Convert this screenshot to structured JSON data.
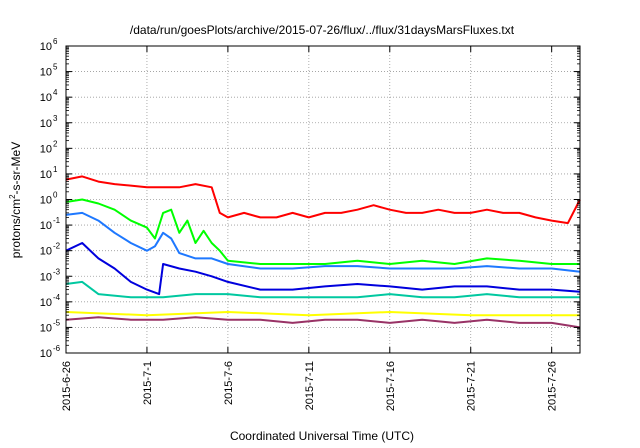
{
  "chart_data": {
    "type": "line",
    "title": "/data/run/goesPlots/archive/2015-07-26/flux/../flux/31daysMarsFluxes.txt",
    "xlabel": "Coordinated Universal Time (UTC)",
    "ylabel": "protons/cm2-s-sr-MeV",
    "ylabel_parts": [
      "protons/cm",
      "2",
      "-s-sr-MeV"
    ],
    "yscale": "log",
    "ylim_exp": [
      -6,
      6
    ],
    "y_ticks": [
      {
        "base": "10",
        "exp": "6"
      },
      {
        "base": "10",
        "exp": "5"
      },
      {
        "base": "10",
        "exp": "4"
      },
      {
        "base": "10",
        "exp": "3"
      },
      {
        "base": "10",
        "exp": "2"
      },
      {
        "base": "10",
        "exp": "1"
      },
      {
        "base": "10",
        "exp": "0"
      },
      {
        "base": "10",
        "exp": "-1"
      },
      {
        "base": "10",
        "exp": "-2"
      },
      {
        "base": "10",
        "exp": "-3"
      },
      {
        "base": "10",
        "exp": "-4"
      },
      {
        "base": "10",
        "exp": "-5"
      },
      {
        "base": "10",
        "exp": "-6"
      }
    ],
    "xlim": [
      "2015-06-26",
      "2015-07-27T18:00"
    ],
    "x_ticks": [
      "2015-6-26",
      "2015-7-1",
      "2015-7-6",
      "2015-7-11",
      "2015-7-16",
      "2015-7-21",
      "2015-7-26"
    ],
    "x_tick_dates": [
      "2015-06-26",
      "2015-07-01",
      "2015-07-06",
      "2015-07-11",
      "2015-07-16",
      "2015-07-21",
      "2015-07-26"
    ],
    "grid": true,
    "series": [
      {
        "color": "#ff0000",
        "x": [
          "2015-06-26",
          "2015-06-27",
          "2015-06-28",
          "2015-06-29",
          "2015-06-30",
          "2015-07-01",
          "2015-07-02",
          "2015-07-03",
          "2015-07-04",
          "2015-07-05",
          "2015-07-05T12:00",
          "2015-07-06",
          "2015-07-07",
          "2015-07-08",
          "2015-07-09",
          "2015-07-10",
          "2015-07-11",
          "2015-07-12",
          "2015-07-13",
          "2015-07-14",
          "2015-07-15",
          "2015-07-16",
          "2015-07-17",
          "2015-07-18",
          "2015-07-19",
          "2015-07-20",
          "2015-07-21",
          "2015-07-22",
          "2015-07-23",
          "2015-07-24",
          "2015-07-25",
          "2015-07-26",
          "2015-07-27",
          "2015-07-27T18:00"
        ],
        "y": [
          6,
          8,
          5,
          4,
          3.5,
          3,
          3,
          3,
          4,
          3,
          0.3,
          0.2,
          0.3,
          0.2,
          0.2,
          0.3,
          0.2,
          0.3,
          0.3,
          0.4,
          0.6,
          0.4,
          0.3,
          0.3,
          0.4,
          0.3,
          0.3,
          0.4,
          0.3,
          0.3,
          0.2,
          0.15,
          0.12,
          1
        ]
      },
      {
        "color": "#00ff00",
        "x": [
          "2015-06-26",
          "2015-06-27",
          "2015-06-28",
          "2015-06-29",
          "2015-06-30",
          "2015-07-01",
          "2015-07-01T12:00",
          "2015-07-02",
          "2015-07-02T12:00",
          "2015-07-03",
          "2015-07-03T12:00",
          "2015-07-04",
          "2015-07-04T12:00",
          "2015-07-05",
          "2015-07-05T12:00",
          "2015-07-06",
          "2015-07-08",
          "2015-07-10",
          "2015-07-12",
          "2015-07-14",
          "2015-07-16",
          "2015-07-18",
          "2015-07-20",
          "2015-07-22",
          "2015-07-24",
          "2015-07-26",
          "2015-07-27T18:00"
        ],
        "y": [
          0.8,
          1,
          0.7,
          0.4,
          0.15,
          0.08,
          0.03,
          0.3,
          0.4,
          0.05,
          0.15,
          0.02,
          0.06,
          0.02,
          0.01,
          0.004,
          0.003,
          0.003,
          0.003,
          0.004,
          0.003,
          0.004,
          0.003,
          0.005,
          0.004,
          0.003,
          0.003
        ]
      },
      {
        "color": "#1e78ff",
        "x": [
          "2015-06-26",
          "2015-06-27",
          "2015-06-28",
          "2015-06-29",
          "2015-06-30",
          "2015-07-01",
          "2015-07-01T12:00",
          "2015-07-02",
          "2015-07-02T12:00",
          "2015-07-03",
          "2015-07-04",
          "2015-07-05",
          "2015-07-06",
          "2015-07-08",
          "2015-07-10",
          "2015-07-12",
          "2015-07-14",
          "2015-07-16",
          "2015-07-18",
          "2015-07-20",
          "2015-07-22",
          "2015-07-24",
          "2015-07-26",
          "2015-07-27T18:00"
        ],
        "y": [
          0.25,
          0.3,
          0.15,
          0.05,
          0.02,
          0.01,
          0.015,
          0.05,
          0.03,
          0.008,
          0.005,
          0.005,
          0.003,
          0.002,
          0.002,
          0.0025,
          0.0025,
          0.002,
          0.002,
          0.002,
          0.0025,
          0.002,
          0.002,
          0.0015
        ]
      },
      {
        "color": "#0000dd",
        "x": [
          "2015-06-26",
          "2015-06-27",
          "2015-06-28",
          "2015-06-29",
          "2015-06-30",
          "2015-07-01",
          "2015-07-01T18:00",
          "2015-07-02",
          "2015-07-03",
          "2015-07-04",
          "2015-07-05",
          "2015-07-06",
          "2015-07-08",
          "2015-07-10",
          "2015-07-12",
          "2015-07-14",
          "2015-07-16",
          "2015-07-18",
          "2015-07-20",
          "2015-07-22",
          "2015-07-24",
          "2015-07-26",
          "2015-07-27T18:00"
        ],
        "y": [
          0.01,
          0.02,
          0.005,
          0.002,
          0.0006,
          0.0003,
          0.0002,
          0.003,
          0.002,
          0.0015,
          0.001,
          0.0006,
          0.0003,
          0.0003,
          0.0004,
          0.0005,
          0.0004,
          0.0003,
          0.0004,
          0.0004,
          0.0003,
          0.0003,
          0.00025
        ]
      },
      {
        "color": "#00c8a0",
        "x": [
          "2015-06-26",
          "2015-06-27",
          "2015-06-28",
          "2015-06-30",
          "2015-07-02",
          "2015-07-04",
          "2015-07-06",
          "2015-07-08",
          "2015-07-10",
          "2015-07-12",
          "2015-07-14",
          "2015-07-16",
          "2015-07-18",
          "2015-07-20",
          "2015-07-22",
          "2015-07-24",
          "2015-07-26",
          "2015-07-27T18:00"
        ],
        "y": [
          0.0005,
          0.0006,
          0.0002,
          0.00015,
          0.00015,
          0.0002,
          0.0002,
          0.00015,
          0.00015,
          0.00015,
          0.00015,
          0.0002,
          0.00015,
          0.00015,
          0.0002,
          0.00015,
          0.00015,
          0.00015
        ]
      },
      {
        "color": "#ffff00",
        "x": [
          "2015-06-26",
          "2015-07-01",
          "2015-07-06",
          "2015-07-11",
          "2015-07-16",
          "2015-07-21",
          "2015-07-26",
          "2015-07-27T18:00"
        ],
        "y": [
          4e-05,
          3e-05,
          4e-05,
          3e-05,
          4e-05,
          3e-05,
          3e-05,
          3e-05
        ]
      },
      {
        "color": "#993366",
        "x": [
          "2015-06-26",
          "2015-06-28",
          "2015-06-30",
          "2015-07-02",
          "2015-07-04",
          "2015-07-06",
          "2015-07-08",
          "2015-07-10",
          "2015-07-12",
          "2015-07-14",
          "2015-07-16",
          "2015-07-18",
          "2015-07-20",
          "2015-07-22",
          "2015-07-24",
          "2015-07-26",
          "2015-07-27T18:00"
        ],
        "y": [
          2e-05,
          2.5e-05,
          2e-05,
          2e-05,
          2.5e-05,
          2e-05,
          2e-05,
          1.5e-05,
          2e-05,
          2e-05,
          1.5e-05,
          2e-05,
          1.5e-05,
          2e-05,
          1.5e-05,
          1.5e-05,
          1e-05
        ]
      }
    ]
  }
}
